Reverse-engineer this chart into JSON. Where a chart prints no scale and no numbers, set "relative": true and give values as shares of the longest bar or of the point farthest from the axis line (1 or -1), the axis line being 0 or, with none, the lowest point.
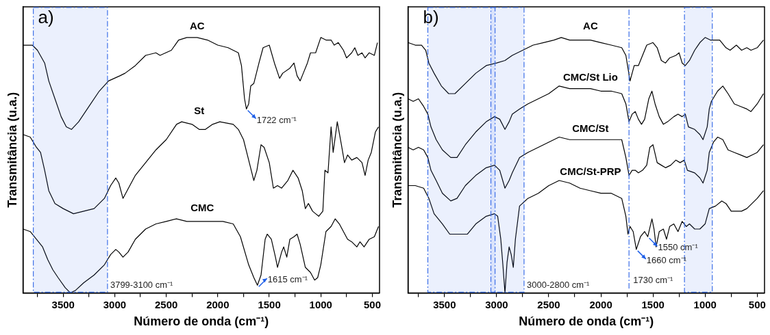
{
  "chart_data": [
    {
      "type": "line",
      "relative": true,
      "xlabel": "Número de onda (cm⁻¹)",
      "ylabel": "Transmitância (u.a.)",
      "xlim": [
        3890,
        430
      ],
      "xticks": [
        3500,
        {
          "value": 3750,
          "label": null
        },
        3000,
        {
          "value": 3250,
          "label": null
        },
        2500,
        {
          "value": 2750,
          "label": null
        },
        2000,
        {
          "value": 2250,
          "label": null
        },
        1500,
        {
          "value": 1750,
          "label": null
        },
        1000,
        {
          "value": 1250,
          "label": null
        },
        500,
        {
          "value": 750,
          "label": null
        }
      ],
      "grid": false,
      "legend": false,
      "marker": "none",
      "line_style": "solid",
      "annotations": [
        "a)",
        {
          "text": "1722 cm⁻¹",
          "x": 1722,
          "y": 0.72
        },
        {
          "text": "1615 cm⁻¹",
          "x": 1615,
          "y": 0.03
        }
      ],
      "bands": [
        {
          "axis": "x",
          "from": 3790,
          "to": 3070,
          "label": "3799-3100 cm⁻¹",
          "color": "#3b6ee8"
        }
      ],
      "series": [
        {
          "name": "AC",
          "color": "#000000",
          "x": [
            3890,
            3800,
            3750,
            3680,
            3640,
            3580,
            3520,
            3470,
            3420,
            3350,
            3250,
            3150,
            3060,
            2950,
            2900,
            2800,
            2700,
            2600,
            2560,
            2450,
            2380,
            2300,
            2200,
            2100,
            2000,
            1900,
            1800,
            1770,
            1740,
            1722,
            1700,
            1680,
            1650,
            1600,
            1560,
            1500,
            1450,
            1400,
            1370,
            1300,
            1260,
            1230,
            1200,
            1170,
            1130,
            1100,
            1050,
            1000,
            950,
            900,
            870,
            830,
            780,
            750,
            700,
            670,
            640,
            600,
            570,
            530,
            480,
            450
          ],
          "values": [
            0.97,
            0.97,
            0.95,
            0.9,
            0.83,
            0.76,
            0.69,
            0.65,
            0.64,
            0.67,
            0.73,
            0.79,
            0.83,
            0.85,
            0.86,
            0.89,
            0.93,
            0.94,
            0.93,
            0.95,
            0.99,
            1.0,
            1.0,
            0.99,
            0.97,
            0.96,
            0.94,
            0.89,
            0.76,
            0.72,
            0.74,
            0.81,
            0.82,
            0.9,
            0.96,
            0.97,
            0.9,
            0.84,
            0.86,
            0.88,
            0.9,
            0.85,
            0.83,
            0.86,
            0.9,
            0.94,
            0.94,
            1.0,
            0.99,
            0.99,
            0.97,
            0.98,
            0.95,
            0.92,
            0.94,
            0.96,
            0.93,
            0.94,
            0.92,
            0.94,
            0.93,
            0.98
          ]
        },
        {
          "name": "St",
          "color": "#000000",
          "x": [
            3890,
            3820,
            3760,
            3720,
            3680,
            3640,
            3580,
            3500,
            3400,
            3300,
            3200,
            3100,
            3040,
            2990,
            2960,
            2920,
            2880,
            2800,
            2700,
            2600,
            2500,
            2400,
            2350,
            2250,
            2180,
            2120,
            2050,
            1980,
            1850,
            1800,
            1750,
            1700,
            1650,
            1620,
            1580,
            1550,
            1500,
            1460,
            1420,
            1380,
            1320,
            1270,
            1220,
            1180,
            1150,
            1120,
            1080,
            1050,
            1020,
            980,
            960,
            930,
            900,
            880,
            840,
            800,
            770,
            740,
            700,
            650,
            600,
            570,
            540,
            510,
            470,
            440
          ],
          "values": [
            0.62,
            0.61,
            0.57,
            0.55,
            0.48,
            0.4,
            0.35,
            0.33,
            0.31,
            0.32,
            0.33,
            0.37,
            0.42,
            0.45,
            0.43,
            0.37,
            0.4,
            0.46,
            0.51,
            0.56,
            0.6,
            0.66,
            0.67,
            0.66,
            0.64,
            0.64,
            0.66,
            0.67,
            0.66,
            0.64,
            0.6,
            0.52,
            0.44,
            0.48,
            0.58,
            0.57,
            0.51,
            0.41,
            0.42,
            0.41,
            0.44,
            0.48,
            0.45,
            0.4,
            0.33,
            0.35,
            0.32,
            0.31,
            0.3,
            0.32,
            0.48,
            0.47,
            0.65,
            0.55,
            0.67,
            0.58,
            0.51,
            0.54,
            0.52,
            0.53,
            0.51,
            0.46,
            0.52,
            0.55,
            0.63,
            0.65
          ]
        },
        {
          "name": "CMC",
          "color": "#000000",
          "x": [
            3890,
            3820,
            3760,
            3700,
            3650,
            3600,
            3550,
            3480,
            3430,
            3380,
            3300,
            3200,
            3100,
            3040,
            2990,
            2960,
            2920,
            2870,
            2800,
            2700,
            2600,
            2500,
            2400,
            2300,
            2200,
            2150,
            2050,
            1950,
            1850,
            1780,
            1700,
            1650,
            1615,
            1580,
            1540,
            1520,
            1480,
            1440,
            1420,
            1380,
            1360,
            1330,
            1300,
            1260,
            1230,
            1200,
            1150,
            1100,
            1060,
            1030,
            1000,
            950,
            900,
            860,
            820,
            780,
            740,
            700,
            650,
            620,
            580,
            530,
            480,
            440
          ],
          "values": [
            0.25,
            0.24,
            0.21,
            0.18,
            0.13,
            0.09,
            0.06,
            0.02,
            0.0,
            0.01,
            0.04,
            0.07,
            0.11,
            0.15,
            0.17,
            0.16,
            0.14,
            0.16,
            0.21,
            0.25,
            0.27,
            0.28,
            0.29,
            0.28,
            0.28,
            0.28,
            0.28,
            0.28,
            0.27,
            0.22,
            0.11,
            0.06,
            0.03,
            0.07,
            0.21,
            0.23,
            0.21,
            0.14,
            0.1,
            0.16,
            0.18,
            0.14,
            0.21,
            0.22,
            0.23,
            0.19,
            0.1,
            0.08,
            0.05,
            0.06,
            0.11,
            0.24,
            0.26,
            0.29,
            0.27,
            0.24,
            0.21,
            0.2,
            0.18,
            0.2,
            0.18,
            0.21,
            0.22,
            0.26
          ]
        }
      ]
    },
    {
      "type": "line",
      "relative": true,
      "xlabel": "Número de onda (cm⁻¹)",
      "ylabel": "Transmitância (u.a.)",
      "xlim": [
        3850,
        430
      ],
      "xticks": [
        3500,
        {
          "value": 3750,
          "label": null
        },
        3000,
        {
          "value": 3250,
          "label": null
        },
        2500,
        {
          "value": 2750,
          "label": null
        },
        2000,
        {
          "value": 2250,
          "label": null
        },
        1500,
        {
          "value": 1750,
          "label": null
        },
        1000,
        {
          "value": 1250,
          "label": null
        },
        500,
        {
          "value": 750,
          "label": null
        }
      ],
      "grid": false,
      "legend": false,
      "marker": "none",
      "line_style": "solid",
      "annotations": [
        "b)",
        {
          "text": "1660 cm⁻¹",
          "x": 1660,
          "y": 0.17
        },
        {
          "text": "1550 cm⁻¹",
          "x": 1550,
          "y": 0.22
        }
      ],
      "ref_lines": [
        {
          "axis": "x",
          "value": 1730,
          "label": "1730 cm⁻¹",
          "color": "#3b6ee8",
          "line_style": "dashdot"
        }
      ],
      "bands": [
        {
          "axis": "x",
          "from": 3055,
          "to": 2737,
          "label": "3000-2800 cm⁻¹",
          "color": "#3b6ee8"
        },
        {
          "axis": "x",
          "from": 3660,
          "to": 3015,
          "color": "#3b6ee8"
        },
        {
          "axis": "x",
          "from": 1198,
          "to": 931,
          "color": "#3b6ee8"
        }
      ],
      "series": [
        {
          "name": "AC",
          "color": "#000000",
          "x": [
            3850,
            3780,
            3720,
            3680,
            3650,
            3600,
            3530,
            3460,
            3400,
            3300,
            3200,
            3100,
            3000,
            2920,
            2850,
            2750,
            2650,
            2550,
            2450,
            2380,
            2300,
            2200,
            2100,
            2000,
            1900,
            1800,
            1760,
            1740,
            1720,
            1700,
            1680,
            1640,
            1600,
            1560,
            1500,
            1460,
            1420,
            1380,
            1340,
            1280,
            1250,
            1220,
            1190,
            1150,
            1100,
            1050,
            1000,
            950,
            900,
            860,
            800,
            760,
            700,
            650,
            600,
            560,
            500,
            440
          ],
          "values": [
            0.98,
            0.97,
            0.97,
            0.95,
            0.9,
            0.86,
            0.81,
            0.78,
            0.78,
            0.82,
            0.86,
            0.89,
            0.9,
            0.91,
            0.93,
            0.95,
            0.97,
            0.98,
            0.99,
            1.0,
            0.99,
            0.99,
            0.99,
            0.98,
            0.97,
            0.96,
            0.93,
            0.88,
            0.83,
            0.86,
            0.89,
            0.89,
            0.93,
            0.97,
            0.98,
            0.96,
            0.91,
            0.9,
            0.92,
            0.93,
            0.94,
            0.9,
            0.89,
            0.91,
            0.95,
            0.98,
            1.0,
            0.99,
            0.99,
            0.99,
            0.96,
            0.95,
            0.97,
            0.95,
            0.96,
            0.95,
            0.96,
            0.99
          ]
        },
        {
          "name": "CMC/St Lio",
          "color": "#000000",
          "x": [
            3850,
            3800,
            3750,
            3700,
            3660,
            3630,
            3580,
            3520,
            3440,
            3380,
            3300,
            3200,
            3100,
            3020,
            2970,
            2920,
            2880,
            2850,
            2780,
            2700,
            2600,
            2500,
            2400,
            2300,
            2200,
            2100,
            2000,
            1900,
            1800,
            1760,
            1730,
            1700,
            1670,
            1640,
            1610,
            1580,
            1540,
            1510,
            1480,
            1440,
            1400,
            1360,
            1300,
            1260,
            1220,
            1190,
            1160,
            1100,
            1050,
            1020,
            980,
            960,
            940,
            880,
            830,
            780,
            720,
            660,
            600,
            560,
            500,
            440
          ],
          "values": [
            0.76,
            0.75,
            0.76,
            0.73,
            0.7,
            0.65,
            0.6,
            0.56,
            0.53,
            0.53,
            0.58,
            0.63,
            0.67,
            0.69,
            0.68,
            0.64,
            0.67,
            0.7,
            0.72,
            0.74,
            0.76,
            0.78,
            0.81,
            0.8,
            0.8,
            0.8,
            0.79,
            0.79,
            0.78,
            0.74,
            0.67,
            0.7,
            0.71,
            0.68,
            0.66,
            0.68,
            0.76,
            0.79,
            0.74,
            0.69,
            0.66,
            0.67,
            0.69,
            0.7,
            0.69,
            0.7,
            0.65,
            0.64,
            0.62,
            0.6,
            0.65,
            0.72,
            0.75,
            0.79,
            0.81,
            0.78,
            0.74,
            0.73,
            0.72,
            0.71,
            0.74,
            0.78
          ]
        },
        {
          "name": "CMC/St",
          "color": "#000000",
          "x": [
            3850,
            3800,
            3750,
            3700,
            3660,
            3630,
            3580,
            3520,
            3440,
            3380,
            3300,
            3200,
            3100,
            3020,
            2970,
            2920,
            2880,
            2850,
            2780,
            2700,
            2600,
            2500,
            2400,
            2300,
            2200,
            2100,
            2000,
            1900,
            1800,
            1760,
            1730,
            1700,
            1670,
            1640,
            1600,
            1560,
            1530,
            1500,
            1460,
            1420,
            1380,
            1330,
            1280,
            1240,
            1200,
            1170,
            1100,
            1050,
            1020,
            980,
            960,
            920,
            880,
            830,
            780,
            720,
            660,
            600,
            550,
            500,
            440
          ],
          "values": [
            0.57,
            0.56,
            0.57,
            0.56,
            0.53,
            0.48,
            0.44,
            0.39,
            0.36,
            0.37,
            0.42,
            0.46,
            0.49,
            0.5,
            0.48,
            0.41,
            0.44,
            0.47,
            0.53,
            0.55,
            0.57,
            0.59,
            0.61,
            0.6,
            0.6,
            0.6,
            0.6,
            0.6,
            0.6,
            0.53,
            0.46,
            0.48,
            0.48,
            0.47,
            0.48,
            0.5,
            0.57,
            0.58,
            0.51,
            0.5,
            0.49,
            0.5,
            0.52,
            0.51,
            0.52,
            0.48,
            0.47,
            0.45,
            0.43,
            0.48,
            0.55,
            0.59,
            0.61,
            0.6,
            0.56,
            0.55,
            0.54,
            0.53,
            0.54,
            0.55,
            0.58
          ]
        },
        {
          "name": "CMC/St-PRP",
          "color": "#000000",
          "x": [
            3850,
            3780,
            3700,
            3650,
            3600,
            3520,
            3450,
            3400,
            3280,
            3200,
            3100,
            3020,
            2990,
            2960,
            2940,
            2920,
            2900,
            2880,
            2860,
            2840,
            2820,
            2780,
            2700,
            2600,
            2500,
            2400,
            2300,
            2200,
            2100,
            2000,
            1900,
            1800,
            1760,
            1740,
            1720,
            1690,
            1660,
            1620,
            1580,
            1550,
            1510,
            1490,
            1470,
            1440,
            1400,
            1370,
            1340,
            1300,
            1260,
            1220,
            1180,
            1150,
            1100,
            1050,
            1000,
            960,
            900,
            840,
            800,
            750,
            700,
            650,
            600,
            550,
            500,
            440
          ],
          "values": [
            0.42,
            0.42,
            0.41,
            0.37,
            0.31,
            0.27,
            0.23,
            0.23,
            0.23,
            0.27,
            0.3,
            0.31,
            0.3,
            0.21,
            0.11,
            0.0,
            0.12,
            0.18,
            0.15,
            0.1,
            0.21,
            0.34,
            0.37,
            0.39,
            0.42,
            0.44,
            0.43,
            0.41,
            0.4,
            0.39,
            0.39,
            0.37,
            0.3,
            0.23,
            0.26,
            0.24,
            0.17,
            0.22,
            0.24,
            0.22,
            0.29,
            0.25,
            0.18,
            0.24,
            0.25,
            0.21,
            0.26,
            0.27,
            0.24,
            0.28,
            0.26,
            0.27,
            0.25,
            0.25,
            0.27,
            0.33,
            0.34,
            0.36,
            0.35,
            0.32,
            0.32,
            0.32,
            0.33,
            0.35,
            0.37,
            0.4
          ]
        }
      ]
    }
  ]
}
